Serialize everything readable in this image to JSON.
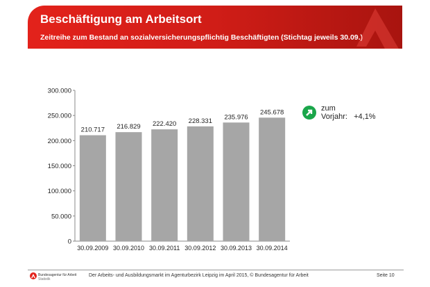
{
  "header": {
    "title": "Beschäftigung am Arbeitsort",
    "subtitle": "Zeitreihe zum Bestand an sozialversicherungspflichtig Beschäftigten (Stichtag jeweils 30.09.)"
  },
  "trend": {
    "label1": "zum",
    "label2": "Vorjahr:",
    "value": "+4,1%",
    "icon": "arrow-up-right-icon",
    "color": "#1aa64a"
  },
  "footer": {
    "org": "Bundesagentur für Arbeit",
    "org_sub": "Statistik",
    "text": "Der Arbeits- und Ausbildungsmarkt im Agenturbezirk Leipzig im April 2015, © Bundesagentur für Arbeit",
    "page": "Seite 10"
  },
  "chart_data": {
    "type": "bar",
    "categories": [
      "30.09.2009",
      "30.09.2010",
      "30.09.2011",
      "30.09.2012",
      "30.09.2013",
      "30.09.2014"
    ],
    "values": [
      210717,
      216829,
      222420,
      228331,
      235976,
      245678
    ],
    "data_labels": [
      "210.717",
      "216.829",
      "222.420",
      "228.331",
      "235.976",
      "245.678"
    ],
    "yticks": [
      "0",
      "50.000",
      "100.000",
      "150.000",
      "200.000",
      "250.000",
      "300.000"
    ],
    "ylim": [
      0,
      300000
    ],
    "bar_color": "#a6a6a6",
    "grid": false
  }
}
